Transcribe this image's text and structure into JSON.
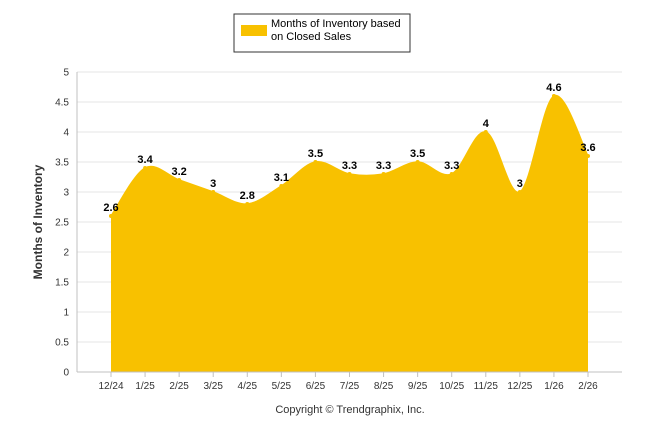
{
  "chart_data": {
    "type": "area",
    "categories": [
      "12/24",
      "1/25",
      "2/25",
      "3/25",
      "4/25",
      "5/25",
      "6/25",
      "7/25",
      "8/25",
      "9/25",
      "10/25",
      "11/25",
      "12/25",
      "1/26",
      "2/26"
    ],
    "series": [
      {
        "name": "Months of Inventory based on Closed Sales",
        "name_lines": [
          "Months of Inventory based",
          "on Closed Sales"
        ],
        "values": [
          2.6,
          3.4,
          3.2,
          3,
          2.8,
          3.1,
          3.5,
          3.3,
          3.3,
          3.5,
          3.3,
          4,
          3,
          4.6,
          3.6
        ],
        "labels": [
          "2.6",
          "3.4",
          "3.2",
          "3",
          "2.8",
          "3.1",
          "3.5",
          "3.3",
          "3.3",
          "3.5",
          "3.3",
          "4",
          "3",
          "4.6",
          "3.6"
        ],
        "color": "#f8c100"
      }
    ],
    "xlabel": "",
    "ylabel": "Months of Inventory",
    "ylim": [
      0,
      5
    ],
    "yticks": [
      "0",
      "0.5",
      "1",
      "1.5",
      "2",
      "2.5",
      "3",
      "3.5",
      "4",
      "4.5",
      "5"
    ],
    "grid": true,
    "legend_position": "top-center",
    "data_labels": true
  },
  "footer": {
    "copyright": "Copyright © Trendgraphix, Inc."
  }
}
